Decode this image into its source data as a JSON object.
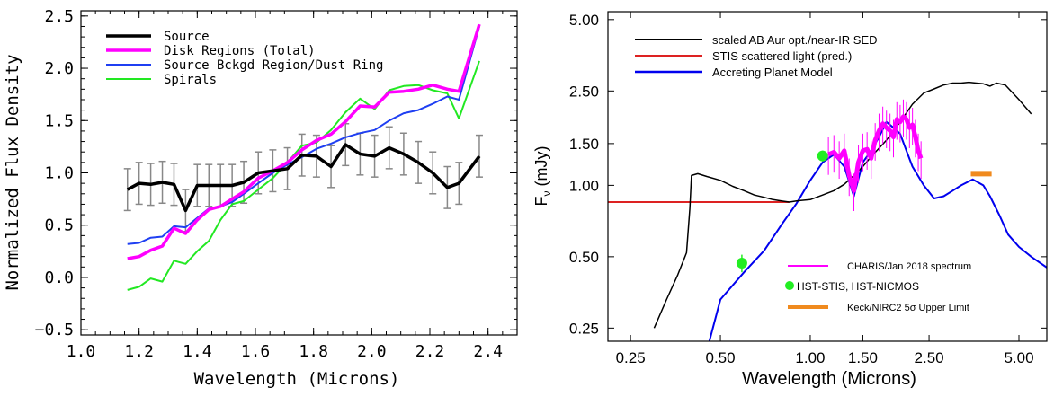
{
  "chart_data": [
    {
      "type": "line",
      "xlabel": "Wavelength (Microns)",
      "ylabel": "Normalized Flux Density",
      "xlim": [
        1.0,
        2.5
      ],
      "ylim": [
        -0.55,
        2.55
      ],
      "xticks": [
        1.0,
        1.2,
        1.4,
        1.6,
        1.8,
        2.0,
        2.2,
        2.4
      ],
      "xtick_labels": [
        "1.0",
        "1.2",
        "1.4",
        "1.6",
        "1.8",
        "2.0",
        "2.2",
        "2.4"
      ],
      "yticks": [
        -0.5,
        0.0,
        0.5,
        1.0,
        1.5,
        2.0,
        2.5
      ],
      "ytick_labels": [
        "−0.5",
        "0.0",
        "0.5",
        "1.0",
        "1.5",
        "2.0",
        "2.5"
      ],
      "legend_position": "top-left",
      "series": [
        {
          "name": "Source",
          "color": "#000000",
          "x": [
            1.16,
            1.2,
            1.24,
            1.28,
            1.32,
            1.36,
            1.4,
            1.44,
            1.48,
            1.52,
            1.56,
            1.61,
            1.66,
            1.71,
            1.76,
            1.81,
            1.86,
            1.91,
            1.96,
            2.01,
            2.06,
            2.11,
            2.16,
            2.21,
            2.26,
            2.3,
            2.37
          ],
          "y": [
            0.84,
            0.9,
            0.89,
            0.91,
            0.89,
            0.64,
            0.88,
            0.88,
            0.88,
            0.88,
            0.91,
            1.0,
            1.02,
            1.04,
            1.17,
            1.16,
            1.06,
            1.27,
            1.18,
            1.16,
            1.24,
            1.18,
            1.1,
            1.0,
            0.86,
            0.9,
            1.16
          ],
          "error_x": [
            1.16,
            1.2,
            1.24,
            1.28,
            1.32,
            1.36,
            1.4,
            1.44,
            1.48,
            1.52,
            1.56,
            1.61,
            1.66,
            1.71,
            1.76,
            1.81,
            1.86,
            1.91,
            1.96,
            2.01,
            2.06,
            2.11,
            2.16,
            2.21,
            2.26,
            2.3,
            2.37
          ],
          "error": [
            0.2,
            0.2,
            0.2,
            0.2,
            0.2,
            0.2,
            0.2,
            0.2,
            0.2,
            0.2,
            0.2,
            0.2,
            0.2,
            0.2,
            0.2,
            0.2,
            0.2,
            0.2,
            0.2,
            0.2,
            0.2,
            0.2,
            0.2,
            0.2,
            0.2,
            0.2,
            0.2
          ]
        },
        {
          "name": "Disk Regions (Total)",
          "color": "#ff00ff",
          "x": [
            1.16,
            1.2,
            1.24,
            1.28,
            1.32,
            1.36,
            1.4,
            1.44,
            1.48,
            1.52,
            1.56,
            1.61,
            1.66,
            1.71,
            1.76,
            1.81,
            1.86,
            1.91,
            1.96,
            2.01,
            2.06,
            2.11,
            2.16,
            2.21,
            2.26,
            2.3,
            2.37
          ],
          "y": [
            0.18,
            0.2,
            0.26,
            0.3,
            0.47,
            0.42,
            0.55,
            0.65,
            0.68,
            0.75,
            0.82,
            0.95,
            1.02,
            1.1,
            1.22,
            1.31,
            1.37,
            1.49,
            1.64,
            1.63,
            1.77,
            1.78,
            1.8,
            1.84,
            1.8,
            1.78,
            2.42
          ]
        },
        {
          "name": "Source Bckgd Region/Dust Ring",
          "color": "#1f3ff2",
          "x": [
            1.16,
            1.2,
            1.24,
            1.28,
            1.32,
            1.36,
            1.4,
            1.44,
            1.48,
            1.52,
            1.56,
            1.61,
            1.66,
            1.71,
            1.76,
            1.81,
            1.86,
            1.91,
            1.96,
            2.01,
            2.06,
            2.11,
            2.16,
            2.21,
            2.26,
            2.3,
            2.37
          ],
          "y": [
            0.32,
            0.33,
            0.38,
            0.39,
            0.49,
            0.48,
            0.57,
            0.66,
            0.68,
            0.72,
            0.8,
            0.9,
            1.0,
            1.08,
            1.15,
            1.23,
            1.28,
            1.34,
            1.38,
            1.41,
            1.5,
            1.57,
            1.6,
            1.66,
            1.73,
            1.7,
            2.4
          ]
        },
        {
          "name": "Spirals",
          "color": "#22e822",
          "x": [
            1.16,
            1.2,
            1.24,
            1.28,
            1.32,
            1.36,
            1.4,
            1.44,
            1.48,
            1.52,
            1.56,
            1.61,
            1.66,
            1.71,
            1.76,
            1.81,
            1.86,
            1.91,
            1.96,
            2.01,
            2.06,
            2.11,
            2.16,
            2.21,
            2.26,
            2.3,
            2.37
          ],
          "y": [
            -0.12,
            -0.09,
            -0.01,
            -0.04,
            0.16,
            0.13,
            0.25,
            0.35,
            0.55,
            0.7,
            0.73,
            0.84,
            0.95,
            1.1,
            1.26,
            1.29,
            1.41,
            1.58,
            1.71,
            1.61,
            1.79,
            1.83,
            1.84,
            1.79,
            1.76,
            1.52,
            2.07
          ]
        }
      ]
    },
    {
      "type": "line",
      "xlabel": "Wavelength (Microns)",
      "ylabel": "Fν (mJy)",
      "ylabel_main": "F",
      "ylabel_sub": "ν",
      "ylabel_rest": " (mJy)",
      "xscale": "log",
      "yscale": "log",
      "xlim": [
        0.21,
        6.2
      ],
      "ylim": [
        0.22,
        5.4
      ],
      "xticks": [
        0.25,
        0.5,
        1.0,
        1.5,
        2.5,
        5.0
      ],
      "xtick_labels": [
        "0.25",
        "0.50",
        "1.00",
        "1.50",
        "2.50",
        "5.00"
      ],
      "yticks": [
        0.25,
        0.5,
        1.0,
        1.5,
        2.5,
        5.0
      ],
      "ytick_labels": [
        "0.25",
        "0.50",
        "1.00",
        "1.50",
        "2.50",
        "5.00"
      ],
      "legend_top_position": "top-left",
      "legend_bottom_position": "bottom-center",
      "series": [
        {
          "name": "scaled AB Aur opt./near-IR SED",
          "color": "#000000",
          "x": [
            0.3,
            0.33,
            0.36,
            0.385,
            0.395,
            0.4,
            0.42,
            0.45,
            0.5,
            0.55,
            0.6,
            0.65,
            0.7,
            0.75,
            0.8,
            0.85,
            0.9,
            1.0,
            1.1,
            1.15,
            1.2,
            1.3,
            1.4,
            1.5,
            1.6,
            1.8,
            2.0,
            2.2,
            2.4,
            2.6,
            2.8,
            3.0,
            3.2,
            3.4,
            3.6,
            3.8,
            4.0,
            4.2,
            4.5,
            5.0,
            5.5
          ],
          "y": [
            0.25,
            0.33,
            0.42,
            0.52,
            0.8,
            1.1,
            1.12,
            1.09,
            1.05,
            0.99,
            0.95,
            0.91,
            0.89,
            0.87,
            0.86,
            0.85,
            0.86,
            0.87,
            0.91,
            0.93,
            0.95,
            1.01,
            1.1,
            1.2,
            1.32,
            1.55,
            1.85,
            2.2,
            2.45,
            2.55,
            2.65,
            2.7,
            2.7,
            2.72,
            2.7,
            2.68,
            2.62,
            2.7,
            2.65,
            2.3,
            2.0
          ]
        },
        {
          "name": "STIS scattered light (pred.)",
          "color": "#dd2222",
          "x": [
            0.21,
            0.5,
            0.85
          ],
          "y": [
            0.85,
            0.85,
            0.85
          ]
        },
        {
          "name": "Accreting Planet Model",
          "color": "#0000ee",
          "x": [
            0.45,
            0.5,
            0.6,
            0.7,
            0.8,
            0.9,
            1.0,
            1.1,
            1.2,
            1.3,
            1.4,
            1.5,
            1.6,
            1.7,
            1.8,
            1.9,
            2.0,
            2.1,
            2.2,
            2.4,
            2.6,
            2.8,
            3.0,
            3.2,
            3.5,
            3.8,
            4.0,
            4.3,
            4.6,
            5.0,
            5.5,
            6.2
          ],
          "y": [
            0.2,
            0.33,
            0.43,
            0.53,
            0.68,
            0.84,
            1.05,
            1.25,
            1.35,
            1.2,
            0.9,
            1.25,
            1.4,
            1.6,
            1.85,
            1.75,
            1.65,
            1.4,
            1.2,
            1.0,
            0.88,
            0.9,
            0.95,
            1.0,
            1.06,
            1.0,
            0.9,
            0.75,
            0.62,
            0.55,
            0.5,
            0.45
          ]
        },
        {
          "name": "CHARIS/Jan 2018 spectrum",
          "color": "#ff00ff",
          "x": [
            1.15,
            1.2,
            1.25,
            1.3,
            1.35,
            1.4,
            1.45,
            1.5,
            1.55,
            1.6,
            1.65,
            1.7,
            1.75,
            1.8,
            1.85,
            1.9,
            1.95,
            2.0,
            2.05,
            2.1,
            2.15,
            2.2,
            2.25,
            2.3,
            2.35
          ],
          "y": [
            1.35,
            1.38,
            1.3,
            1.4,
            1.1,
            0.95,
            1.25,
            1.4,
            1.42,
            1.3,
            1.55,
            1.7,
            1.82,
            1.75,
            1.7,
            1.6,
            1.9,
            1.85,
            1.95,
            1.9,
            1.75,
            1.8,
            1.6,
            1.4,
            1.3
          ],
          "error": [
            0.18,
            0.18,
            0.18,
            0.18,
            0.18,
            0.18,
            0.18,
            0.18,
            0.18,
            0.18,
            0.18,
            0.18,
            0.18,
            0.18,
            0.18,
            0.18,
            0.18,
            0.18,
            0.18,
            0.18,
            0.18,
            0.18,
            0.18,
            0.18,
            0.18
          ]
        },
        {
          "name": "HST-STIS, HST-NICMOS",
          "color": "#22ee22",
          "x": [
            0.59,
            1.1
          ],
          "y": [
            0.47,
            1.33
          ],
          "error": [
            0.04,
            0.07
          ]
        },
        {
          "name": "Keck/NIRC2 5σ Upper Limit",
          "name_main": "Keck/NIRC2 5",
          "name_sub": "σ",
          "name_rest": " Upper Limit",
          "color": "#f08a1e",
          "x": [
            3.45,
            4.05
          ],
          "y": [
            1.12,
            1.12
          ]
        }
      ]
    }
  ]
}
